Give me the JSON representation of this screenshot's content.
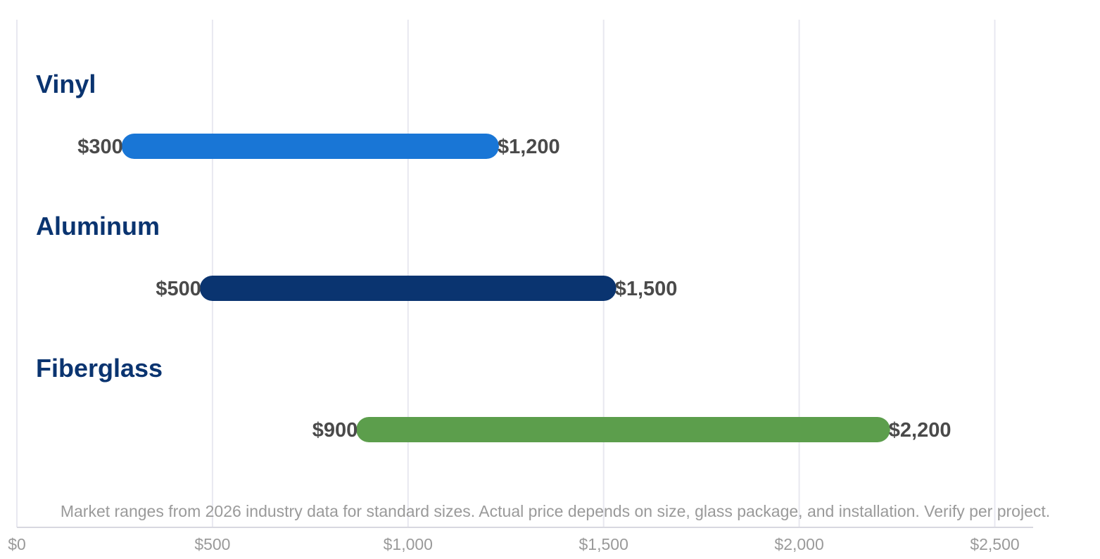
{
  "chart_data": {
    "type": "bar",
    "orientation": "horizontal-range",
    "title": "",
    "xlabel": "",
    "ylabel": "",
    "xlim": [
      0,
      2600
    ],
    "grid": true,
    "x_ticks": [
      {
        "value": 0,
        "label": "$0"
      },
      {
        "value": 500,
        "label": "$500"
      },
      {
        "value": 1000,
        "label": "$1,000"
      },
      {
        "value": 1500,
        "label": "$1,500"
      },
      {
        "value": 2000,
        "label": "$2,000"
      },
      {
        "value": 2500,
        "label": "$2,500"
      }
    ],
    "series": [
      {
        "category": "Vinyl",
        "low": 300,
        "high": 1200,
        "low_label": "$300",
        "high_label": "$1,200",
        "color": "#1976d6"
      },
      {
        "category": "Aluminum",
        "low": 500,
        "high": 1500,
        "low_label": "$500",
        "high_label": "$1,500",
        "color": "#0a3470"
      },
      {
        "category": "Fiberglass",
        "low": 900,
        "high": 2200,
        "low_label": "$900",
        "high_label": "$2,200",
        "color": "#5c9e4c"
      }
    ],
    "note": "Market ranges from 2026 industry data for standard sizes. Actual price depends on size, glass package, and installation. Verify per project."
  }
}
